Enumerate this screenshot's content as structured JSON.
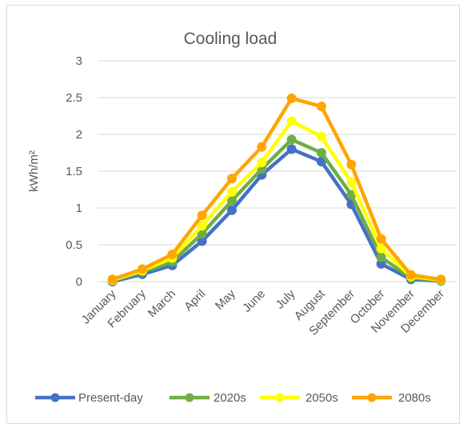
{
  "chart_data": {
    "type": "line",
    "title": "Cooling load",
    "ylabel": "kWh/m²",
    "xlabel": "",
    "categories": [
      "January",
      "February",
      "March",
      "April",
      "May",
      "June",
      "July",
      "August",
      "September",
      "October",
      "November",
      "December"
    ],
    "ylim": [
      0,
      3
    ],
    "yticks": [
      "0",
      "0.5",
      "1",
      "1.5",
      "2",
      "2.5",
      "3"
    ],
    "grid": "horizontal",
    "legend_position": "bottom",
    "series": [
      {
        "name": "Present-day",
        "color": "#4472C4",
        "values": [
          0.0,
          0.1,
          0.22,
          0.55,
          0.97,
          1.45,
          1.8,
          1.63,
          1.05,
          0.24,
          0.03,
          0.01
        ]
      },
      {
        "name": "2020s",
        "color": "#70AD47",
        "values": [
          0.01,
          0.13,
          0.27,
          0.65,
          1.1,
          1.53,
          1.93,
          1.75,
          1.18,
          0.33,
          0.05,
          0.02
        ]
      },
      {
        "name": "2050s",
        "color": "#FFFF00",
        "values": [
          0.02,
          0.15,
          0.32,
          0.76,
          1.22,
          1.62,
          2.18,
          1.97,
          1.35,
          0.45,
          0.07,
          0.02
        ]
      },
      {
        "name": "2080s",
        "color": "#FFA500",
        "values": [
          0.03,
          0.17,
          0.37,
          0.9,
          1.4,
          1.83,
          2.49,
          2.38,
          1.59,
          0.58,
          0.09,
          0.03
        ]
      }
    ]
  }
}
